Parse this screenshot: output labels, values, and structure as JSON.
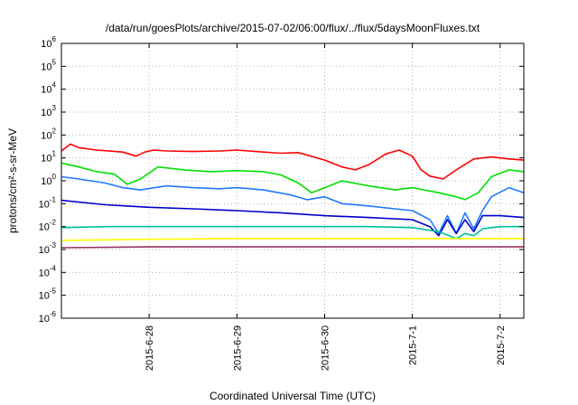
{
  "chart_data": {
    "type": "line",
    "title": "/data/run/goesPlots/archive/2015-07-02/06:00/flux/../flux/5daysMoonFluxes.txt",
    "xlabel": "Coordinated Universal Time (UTC)",
    "ylabel": "protons/cm²-s-sr-MeV",
    "yscale": "log",
    "ylim": [
      1e-06,
      1000000.0
    ],
    "xlim": [
      0,
      5.27
    ],
    "grid": true,
    "y_tick_exponents": [
      -6,
      -5,
      -4,
      -3,
      -2,
      -1,
      0,
      1,
      2,
      3,
      4,
      5,
      6
    ],
    "x_ticks": [
      {
        "pos": 1,
        "label": "2015-6-28"
      },
      {
        "pos": 2,
        "label": "2015-6-29"
      },
      {
        "pos": 3,
        "label": "2015-6-30"
      },
      {
        "pos": 4,
        "label": "2015-7-1"
      },
      {
        "pos": 5,
        "label": "2015-7-2"
      }
    ],
    "series": [
      {
        "color": "#ff0000",
        "x": [
          0,
          0.1,
          0.2,
          0.4,
          0.7,
          0.85,
          0.95,
          1.05,
          1.2,
          1.5,
          1.8,
          2.0,
          2.3,
          2.5,
          2.7,
          3.0,
          3.2,
          3.35,
          3.5,
          3.7,
          3.85,
          4.0,
          4.1,
          4.2,
          4.35,
          4.5,
          4.7,
          4.9,
          5.1,
          5.27
        ],
        "y": [
          20,
          40,
          28,
          22,
          18,
          12,
          18,
          22,
          20,
          19,
          20,
          22,
          18,
          16,
          17,
          8,
          4,
          3,
          5,
          15,
          22,
          12,
          3,
          1.6,
          1.2,
          3,
          9,
          11,
          9,
          8
        ]
      },
      {
        "color": "#00e000",
        "x": [
          0,
          0.2,
          0.4,
          0.6,
          0.75,
          0.9,
          1.1,
          1.4,
          1.7,
          2.0,
          2.3,
          2.5,
          2.7,
          2.85,
          3.0,
          3.2,
          3.5,
          3.8,
          4.0,
          4.3,
          4.5,
          4.6,
          4.75,
          4.9,
          5.1,
          5.27
        ],
        "y": [
          6,
          4,
          2.5,
          2,
          0.7,
          1.2,
          4,
          3,
          2.5,
          2.8,
          2.5,
          1.8,
          0.8,
          0.3,
          0.5,
          1,
          0.6,
          0.4,
          0.5,
          0.3,
          0.2,
          0.15,
          0.3,
          1.5,
          3,
          2.5
        ]
      },
      {
        "color": "#1e78ff",
        "x": [
          0,
          0.2,
          0.5,
          0.7,
          0.9,
          1.2,
          1.5,
          1.8,
          2.0,
          2.3,
          2.6,
          2.8,
          3.0,
          3.2,
          3.5,
          3.8,
          4.0,
          4.2,
          4.3,
          4.4,
          4.5,
          4.6,
          4.7,
          4.8,
          4.9,
          5.1,
          5.27
        ],
        "y": [
          1.5,
          1.2,
          0.8,
          0.5,
          0.4,
          0.6,
          0.5,
          0.45,
          0.5,
          0.4,
          0.25,
          0.15,
          0.2,
          0.1,
          0.08,
          0.06,
          0.05,
          0.02,
          0.005,
          0.03,
          0.005,
          0.04,
          0.008,
          0.05,
          0.2,
          0.5,
          0.3
        ]
      },
      {
        "color": "#0000cc",
        "x": [
          0,
          0.5,
          1.0,
          1.5,
          2.0,
          2.5,
          3.0,
          3.5,
          4.0,
          4.2,
          4.3,
          4.4,
          4.5,
          4.6,
          4.7,
          4.8,
          5.0,
          5.27
        ],
        "y": [
          0.14,
          0.09,
          0.07,
          0.06,
          0.05,
          0.04,
          0.03,
          0.025,
          0.02,
          0.01,
          0.004,
          0.02,
          0.005,
          0.02,
          0.006,
          0.03,
          0.03,
          0.025
        ]
      },
      {
        "color": "#00c0a0",
        "x": [
          0,
          0.5,
          1.0,
          1.5,
          2.0,
          2.5,
          3.0,
          3.5,
          4.0,
          4.3,
          4.5,
          4.6,
          4.7,
          4.8,
          5.0,
          5.27
        ],
        "y": [
          0.009,
          0.01,
          0.01,
          0.01,
          0.01,
          0.01,
          0.01,
          0.01,
          0.009,
          0.006,
          0.003,
          0.005,
          0.004,
          0.008,
          0.01,
          0.01
        ]
      },
      {
        "color": "#ffff00",
        "x": [
          0,
          1.0,
          2.0,
          3.0,
          4.0,
          5.0,
          5.27
        ],
        "y": [
          0.0025,
          0.0028,
          0.003,
          0.003,
          0.003,
          0.003,
          0.003
        ]
      },
      {
        "color": "#993366",
        "x": [
          0,
          1.0,
          2.0,
          3.0,
          4.0,
          5.0,
          5.27
        ],
        "y": [
          0.0012,
          0.0013,
          0.0013,
          0.0013,
          0.0013,
          0.0013,
          0.0013
        ]
      }
    ]
  }
}
